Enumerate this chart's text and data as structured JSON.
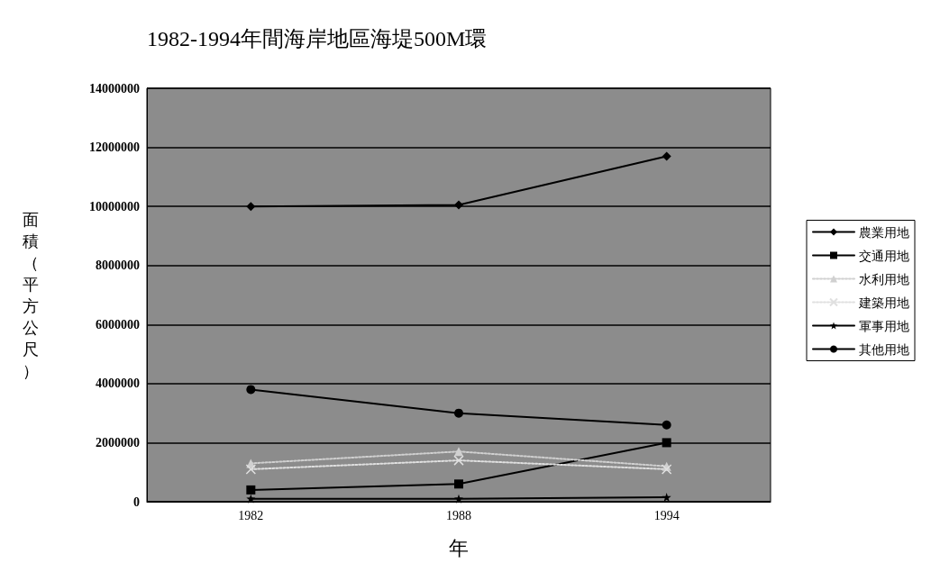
{
  "chart_data": {
    "type": "line",
    "title": "1982-1994年間海岸地區海堤500M環",
    "xlabel": "年",
    "ylabel": "面積（平方公尺）",
    "categories": [
      "1982",
      "1988",
      "1994"
    ],
    "series": [
      {
        "name": "農業用地",
        "color": "#000000",
        "marker": "diamond",
        "line_style": "solid",
        "values": [
          10000000,
          10050000,
          11700000
        ]
      },
      {
        "name": "交通用地",
        "color": "#000000",
        "marker": "square",
        "line_style": "solid",
        "values": [
          400000,
          600000,
          2000000
        ]
      },
      {
        "name": "水利用地",
        "color": "#d0d0d0",
        "marker": "triangle",
        "line_style": "dotted",
        "values": [
          1300000,
          1700000,
          1200000
        ]
      },
      {
        "name": "建築用地",
        "color": "#e0e0e0",
        "marker": "cross",
        "line_style": "dotted",
        "values": [
          1100000,
          1400000,
          1100000
        ]
      },
      {
        "name": "軍事用地",
        "color": "#000000",
        "marker": "star",
        "line_style": "solid",
        "values": [
          100000,
          100000,
          150000
        ]
      },
      {
        "name": "其他用地",
        "color": "#000000",
        "marker": "circle",
        "line_style": "solid",
        "values": [
          3800000,
          3000000,
          2600000
        ]
      }
    ],
    "ylim": [
      0,
      14000000
    ],
    "yticks": [
      0,
      2000000,
      4000000,
      6000000,
      8000000,
      10000000,
      12000000,
      14000000
    ],
    "grid": "y",
    "legend": "right"
  }
}
